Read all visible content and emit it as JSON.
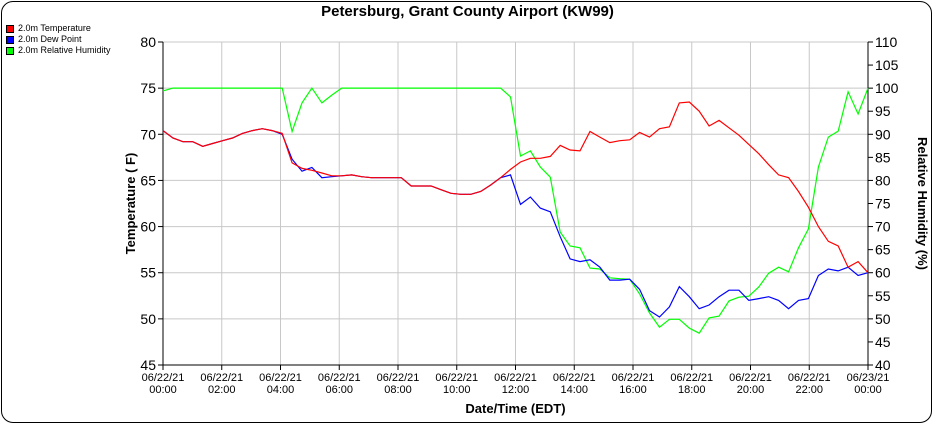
{
  "chart_data": {
    "type": "line",
    "title": "Petersburg, Grant County Airport (KW99)",
    "xlabel": "Date/Time (EDT)",
    "ylabel_left": "Temperature ( F)",
    "ylabel_right": "Relative Humidity (%)",
    "ylim_left": [
      45,
      80
    ],
    "ylim_right": [
      40,
      110
    ],
    "yticks_left": [
      45,
      50,
      55,
      60,
      65,
      70,
      75,
      80
    ],
    "yticks_right": [
      40,
      45,
      50,
      55,
      60,
      65,
      70,
      75,
      80,
      85,
      90,
      95,
      100,
      105,
      110
    ],
    "xlim_hours": [
      0,
      24
    ],
    "xticks": [
      {
        "date": "06/22/21",
        "time": "00:00"
      },
      {
        "date": "06/22/21",
        "time": "02:00"
      },
      {
        "date": "06/22/21",
        "time": "04:00"
      },
      {
        "date": "06/22/21",
        "time": "06:00"
      },
      {
        "date": "06/22/21",
        "time": "08:00"
      },
      {
        "date": "06/22/21",
        "time": "10:00"
      },
      {
        "date": "06/22/21",
        "time": "12:00"
      },
      {
        "date": "06/22/21",
        "time": "14:00"
      },
      {
        "date": "06/22/21",
        "time": "16:00"
      },
      {
        "date": "06/22/21",
        "time": "18:00"
      },
      {
        "date": "06/22/21",
        "time": "20:00"
      },
      {
        "date": "06/22/21",
        "time": "22:00"
      },
      {
        "date": "06/23/21",
        "time": "00:00"
      }
    ],
    "grid": true,
    "legend_position": "top-left",
    "series": [
      {
        "name": "2.0m Temperature",
        "axis": "left",
        "color": "#ff0000",
        "values": [
          70.4,
          69.6,
          69.2,
          69.2,
          68.7,
          69.0,
          69.3,
          69.6,
          70.1,
          70.4,
          70.6,
          70.4,
          70.1,
          66.9,
          66.3,
          66.1,
          65.8,
          65.5,
          65.5,
          65.6,
          65.4,
          65.3,
          65.3,
          65.3,
          65.3,
          64.4,
          64.4,
          64.4,
          64.0,
          63.6,
          63.5,
          63.5,
          63.8,
          64.5,
          65.3,
          66.2,
          67.0,
          67.4,
          67.4,
          67.6,
          68.8,
          68.3,
          68.2,
          70.3,
          69.7,
          69.1,
          69.3,
          69.4,
          70.2,
          69.7,
          70.6,
          70.8,
          73.4,
          73.5,
          72.5,
          70.9,
          71.5,
          70.7,
          69.9,
          68.9,
          67.9,
          66.7,
          65.6,
          65.3,
          63.8,
          62.1,
          60.0,
          58.4,
          57.9,
          55.6,
          56.2,
          55.0
        ]
      },
      {
        "name": "2.0m Dew Point",
        "axis": "left",
        "color": "#0000ff",
        "values": [
          70.4,
          69.6,
          69.2,
          69.2,
          68.7,
          69.0,
          69.3,
          69.6,
          70.1,
          70.4,
          70.6,
          70.4,
          70.0,
          67.3,
          66.0,
          66.4,
          65.3,
          65.4,
          65.5,
          65.6,
          65.4,
          65.3,
          65.3,
          65.3,
          65.3,
          64.4,
          64.4,
          64.4,
          64.0,
          63.6,
          63.5,
          63.5,
          63.8,
          64.5,
          65.3,
          65.6,
          62.4,
          63.2,
          62.0,
          61.6,
          58.9,
          56.5,
          56.2,
          56.4,
          55.6,
          54.2,
          54.2,
          54.3,
          53.2,
          50.9,
          50.2,
          51.3,
          53.5,
          52.4,
          51.1,
          51.5,
          52.4,
          53.1,
          53.1,
          52.0,
          52.2,
          52.4,
          52.0,
          51.1,
          52.0,
          52.2,
          54.7,
          55.4,
          55.2,
          55.6,
          54.7,
          55.0
        ]
      },
      {
        "name": "2.0m Relative Humidity",
        "axis": "right",
        "color": "#00ff00",
        "values": [
          99.4,
          100,
          100,
          100,
          100,
          100,
          100,
          100,
          100,
          100,
          100,
          100,
          100,
          90.6,
          96.8,
          100,
          96.8,
          98.5,
          100,
          100,
          100,
          100,
          100,
          100,
          100,
          100,
          100,
          100,
          100,
          100,
          100,
          100,
          100,
          100,
          100,
          98.1,
          85.3,
          86.4,
          82.9,
          80.7,
          68.8,
          65.8,
          65.4,
          61.0,
          60.8,
          58.9,
          58.7,
          58.6,
          55.4,
          51.3,
          48.2,
          49.9,
          49.9,
          48.0,
          46.9,
          50.2,
          50.6,
          53.9,
          54.7,
          54.9,
          56.9,
          59.9,
          61.2,
          60.2,
          65.4,
          69.5,
          82.9,
          89.4,
          90.7,
          99.2,
          94.4,
          100
        ]
      }
    ]
  }
}
